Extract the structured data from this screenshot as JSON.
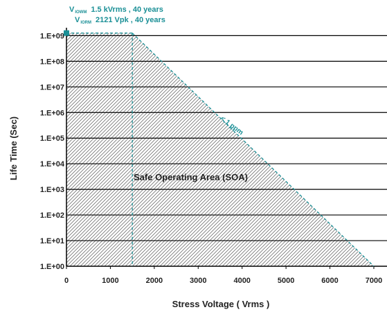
{
  "chart_data": {
    "type": "area",
    "xlabel": "Stress Voltage ( Vrms )",
    "ylabel": "Life Time (Sec)",
    "xlim": [
      0,
      7300
    ],
    "ylim_log10": [
      0,
      9.2
    ],
    "x_ticks": [
      "0",
      "1000",
      "2000",
      "3000",
      "4000",
      "5000",
      "6000",
      "7000"
    ],
    "x_tick_values": [
      0,
      1000,
      2000,
      3000,
      4000,
      5000,
      6000,
      7000
    ],
    "y_ticks": [
      "1.E+00",
      "1.E+01",
      "1.E+02",
      "1.E+03",
      "1.E+04",
      "1.E+05",
      "1.E+06",
      "1.E+07",
      "1.E+08",
      "1.E+09"
    ],
    "y_tick_values": [
      1,
      10,
      100,
      1000,
      10000,
      100000,
      1000000,
      10000000,
      100000000,
      1000000000
    ],
    "grid": "horizontal",
    "soa_boundary": [
      {
        "x": 0,
        "y": 1260000000
      },
      {
        "x": 1500,
        "y": 1260000000
      },
      {
        "x": 7000,
        "y": 1
      }
    ],
    "limit_point": {
      "x": 0,
      "y": 1260000000
    },
    "vertical_marker_x": 1500,
    "annotations": {
      "soa_label": "Safe Operating Area (SOA)",
      "ppm_label": "< 1 ppm",
      "viowm_prefix": "V",
      "viowm_sub": "IOWM",
      "viowm_text": "1.5  kVrms , 40 years",
      "viorm_prefix": "V",
      "viorm_sub": "IORM",
      "viorm_text": "2121 Vpk , 40 years"
    },
    "colors": {
      "accent": "#1a8f96",
      "grid": "#000000",
      "hatch": "#555555",
      "text": "#222222"
    }
  }
}
